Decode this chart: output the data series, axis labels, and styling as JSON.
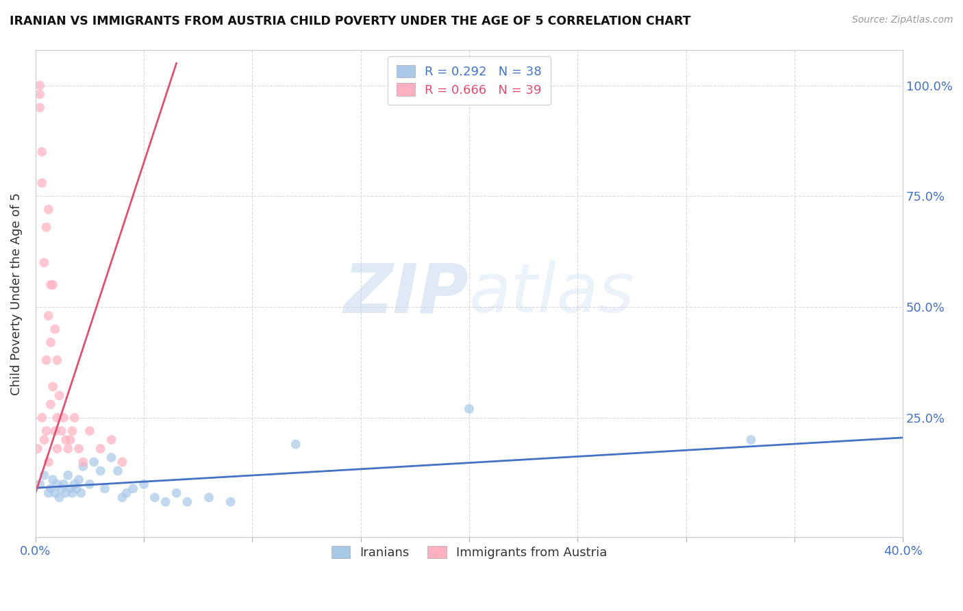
{
  "title": "IRANIAN VS IMMIGRANTS FROM AUSTRIA CHILD POVERTY UNDER THE AGE OF 5 CORRELATION CHART",
  "source": "Source: ZipAtlas.com",
  "ylabel": "Child Poverty Under the Age of 5",
  "ytick_labels": [
    "100.0%",
    "75.0%",
    "50.0%",
    "25.0%"
  ],
  "ytick_values": [
    1.0,
    0.75,
    0.5,
    0.25
  ],
  "xlim": [
    0.0,
    0.4
  ],
  "ylim": [
    -0.02,
    1.08
  ],
  "legend_blue_R": "R = 0.292",
  "legend_blue_N": "N = 38",
  "legend_pink_R": "R = 0.666",
  "legend_pink_N": "N = 39",
  "legend_label_blue": "Iranians",
  "legend_label_pink": "Immigrants from Austria",
  "blue_color": "#a8c8e8",
  "pink_color": "#ffb0c0",
  "blue_line_color": "#4472c4",
  "pink_line_color": "#e05070",
  "watermark_zip": "ZIP",
  "watermark_atlas": "atlas",
  "background_color": "#ffffff",
  "blue_scatter_x": [
    0.002,
    0.004,
    0.006,
    0.007,
    0.008,
    0.009,
    0.01,
    0.011,
    0.012,
    0.013,
    0.014,
    0.015,
    0.016,
    0.017,
    0.018,
    0.019,
    0.02,
    0.021,
    0.022,
    0.025,
    0.027,
    0.03,
    0.032,
    0.035,
    0.038,
    0.04,
    0.042,
    0.045,
    0.05,
    0.055,
    0.06,
    0.065,
    0.07,
    0.08,
    0.09,
    0.12,
    0.2,
    0.33
  ],
  "blue_scatter_y": [
    0.1,
    0.12,
    0.08,
    0.09,
    0.11,
    0.08,
    0.1,
    0.07,
    0.09,
    0.1,
    0.08,
    0.12,
    0.09,
    0.08,
    0.1,
    0.09,
    0.11,
    0.08,
    0.14,
    0.1,
    0.15,
    0.13,
    0.09,
    0.16,
    0.13,
    0.07,
    0.08,
    0.09,
    0.1,
    0.07,
    0.06,
    0.08,
    0.06,
    0.07,
    0.06,
    0.19,
    0.27,
    0.2
  ],
  "pink_scatter_x": [
    0.001,
    0.002,
    0.002,
    0.002,
    0.003,
    0.003,
    0.003,
    0.004,
    0.004,
    0.005,
    0.005,
    0.005,
    0.006,
    0.006,
    0.006,
    0.007,
    0.007,
    0.007,
    0.008,
    0.008,
    0.009,
    0.009,
    0.01,
    0.01,
    0.01,
    0.011,
    0.012,
    0.013,
    0.014,
    0.015,
    0.016,
    0.017,
    0.018,
    0.02,
    0.022,
    0.025,
    0.03,
    0.035,
    0.04
  ],
  "pink_scatter_y": [
    0.18,
    0.98,
    0.95,
    1.0,
    0.85,
    0.78,
    0.25,
    0.6,
    0.2,
    0.68,
    0.38,
    0.22,
    0.72,
    0.48,
    0.15,
    0.55,
    0.42,
    0.28,
    0.55,
    0.32,
    0.45,
    0.22,
    0.38,
    0.25,
    0.18,
    0.3,
    0.22,
    0.25,
    0.2,
    0.18,
    0.2,
    0.22,
    0.25,
    0.18,
    0.15,
    0.22,
    0.18,
    0.2,
    0.15
  ],
  "blue_line_x": [
    -0.005,
    0.4
  ],
  "blue_line_y": [
    0.09,
    0.205
  ],
  "pink_line_x": [
    -0.002,
    0.065
  ],
  "pink_line_y": [
    0.05,
    1.05
  ]
}
